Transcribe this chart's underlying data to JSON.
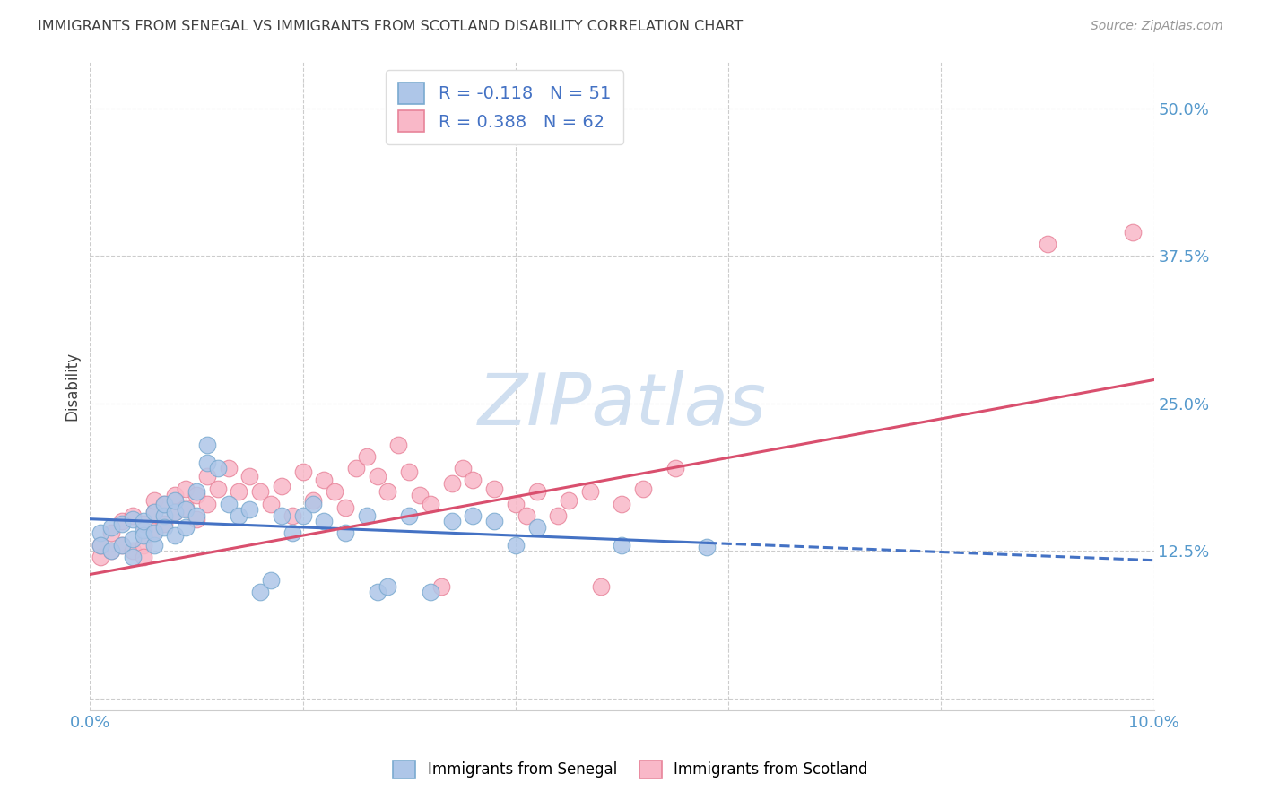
{
  "title": "IMMIGRANTS FROM SENEGAL VS IMMIGRANTS FROM SCOTLAND DISABILITY CORRELATION CHART",
  "source": "Source: ZipAtlas.com",
  "ylabel": "Disability",
  "xlim": [
    0.0,
    0.1
  ],
  "ylim": [
    -0.01,
    0.54
  ],
  "xticks": [
    0.0,
    0.02,
    0.04,
    0.06,
    0.08,
    0.1
  ],
  "xticklabels": [
    "0.0%",
    "",
    "",
    "",
    "",
    "10.0%"
  ],
  "yticks": [
    0.0,
    0.125,
    0.25,
    0.375,
    0.5
  ],
  "yticklabels": [
    "",
    "12.5%",
    "25.0%",
    "37.5%",
    "50.0%"
  ],
  "legend_r1": "R = -0.118",
  "legend_n1": "N = 51",
  "legend_r2": "R = 0.388",
  "legend_n2": "N = 62",
  "watermark": "ZIPatlas",
  "senegal_color": "#aec6e8",
  "scotland_color": "#f9b8c8",
  "senegal_edge": "#7aaad0",
  "scotland_edge": "#e8849a",
  "trend_senegal_color": "#4472c4",
  "trend_scotland_color": "#d94f6e",
  "background_color": "#ffffff",
  "grid_color": "#cccccc",
  "title_color": "#404040",
  "axis_label_color": "#404040",
  "tick_color": "#5599cc",
  "watermark_color": "#d0dff0",
  "senegal_x": [
    0.001,
    0.001,
    0.002,
    0.002,
    0.003,
    0.003,
    0.004,
    0.004,
    0.004,
    0.005,
    0.005,
    0.005,
    0.006,
    0.006,
    0.006,
    0.007,
    0.007,
    0.007,
    0.008,
    0.008,
    0.008,
    0.009,
    0.009,
    0.01,
    0.01,
    0.011,
    0.011,
    0.012,
    0.013,
    0.014,
    0.015,
    0.016,
    0.017,
    0.018,
    0.019,
    0.02,
    0.021,
    0.022,
    0.024,
    0.026,
    0.027,
    0.028,
    0.03,
    0.032,
    0.034,
    0.036,
    0.038,
    0.04,
    0.042,
    0.05,
    0.058
  ],
  "senegal_y": [
    0.14,
    0.13,
    0.145,
    0.125,
    0.148,
    0.13,
    0.152,
    0.12,
    0.135,
    0.143,
    0.138,
    0.15,
    0.13,
    0.158,
    0.14,
    0.155,
    0.145,
    0.165,
    0.158,
    0.168,
    0.138,
    0.16,
    0.145,
    0.175,
    0.155,
    0.2,
    0.215,
    0.195,
    0.165,
    0.155,
    0.16,
    0.09,
    0.1,
    0.155,
    0.14,
    0.155,
    0.165,
    0.15,
    0.14,
    0.155,
    0.09,
    0.095,
    0.155,
    0.09,
    0.15,
    0.155,
    0.15,
    0.13,
    0.145,
    0.13,
    0.128
  ],
  "scotland_x": [
    0.001,
    0.001,
    0.002,
    0.002,
    0.003,
    0.003,
    0.004,
    0.004,
    0.005,
    0.005,
    0.005,
    0.006,
    0.006,
    0.006,
    0.007,
    0.007,
    0.008,
    0.008,
    0.009,
    0.009,
    0.01,
    0.01,
    0.011,
    0.011,
    0.012,
    0.013,
    0.014,
    0.015,
    0.016,
    0.017,
    0.018,
    0.019,
    0.02,
    0.021,
    0.022,
    0.023,
    0.024,
    0.025,
    0.026,
    0.027,
    0.028,
    0.029,
    0.03,
    0.031,
    0.032,
    0.033,
    0.034,
    0.035,
    0.036,
    0.038,
    0.04,
    0.041,
    0.042,
    0.044,
    0.045,
    0.047,
    0.048,
    0.05,
    0.052,
    0.055,
    0.09,
    0.098
  ],
  "scotland_y": [
    0.12,
    0.13,
    0.125,
    0.14,
    0.13,
    0.15,
    0.125,
    0.155,
    0.13,
    0.148,
    0.12,
    0.142,
    0.158,
    0.168,
    0.148,
    0.165,
    0.158,
    0.172,
    0.162,
    0.178,
    0.152,
    0.172,
    0.165,
    0.188,
    0.178,
    0.195,
    0.175,
    0.188,
    0.175,
    0.165,
    0.18,
    0.155,
    0.192,
    0.168,
    0.185,
    0.175,
    0.162,
    0.195,
    0.205,
    0.188,
    0.175,
    0.215,
    0.192,
    0.172,
    0.165,
    0.095,
    0.182,
    0.195,
    0.185,
    0.178,
    0.165,
    0.155,
    0.175,
    0.155,
    0.168,
    0.175,
    0.095,
    0.165,
    0.178,
    0.195,
    0.385,
    0.395
  ],
  "trend_senegal_slope": -0.35,
  "trend_senegal_intercept": 0.152,
  "trend_senegal_solid_end": 0.058,
  "trend_scotland_slope": 1.65,
  "trend_scotland_intercept": 0.105
}
